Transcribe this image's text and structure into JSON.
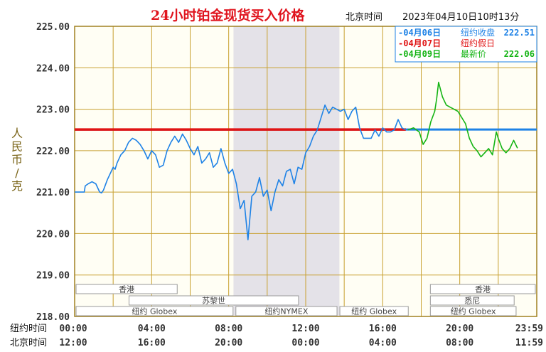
{
  "chart_data": {
    "type": "line",
    "title": "24小时铂金现货买入价格",
    "subtitle_label": "北京时间",
    "subtitle_datetime": "2023年04月10日10时13分",
    "ylabel_chars": [
      "人",
      "民",
      "币",
      "/",
      "克"
    ],
    "ylim": [
      218,
      225
    ],
    "y_ticks": [
      "225.00",
      "224.00",
      "223.00",
      "222.00",
      "221.00",
      "220.00",
      "219.00",
      "218.00"
    ],
    "x_row1_label": "纽约时间",
    "x_row1_ticks": [
      "00:00",
      "04:00",
      "08:00",
      "12:00",
      "16:00",
      "20:00",
      "23:59"
    ],
    "x_row2_label": "北京时间",
    "x_row2_ticks": [
      "12:00",
      "16:00",
      "20:00",
      "00:00",
      "04:00",
      "08:00",
      "11:59"
    ],
    "x_tick_hours": [
      0,
      4,
      8,
      12,
      16,
      20,
      24
    ],
    "grid": true,
    "legend": [
      {
        "date": "-04月06日",
        "label": "纽约收盘",
        "value": "222.51",
        "color": "#1e82e6"
      },
      {
        "date": "-04月07日",
        "label": "纽约假日",
        "value": "",
        "color": "#e01414"
      },
      {
        "date": "-04月09日",
        "label": "最新价",
        "value": "222.06",
        "color": "#14b414"
      }
    ],
    "reference_line": {
      "value": 222.51,
      "color": "#1e82e6"
    },
    "holiday_line": {
      "value": 222.51,
      "color": "#e01414",
      "x_range": [
        0,
        17.2
      ]
    },
    "highlight_range_hours": [
      8.25,
      13.75
    ],
    "sessions": [
      {
        "label": "香港",
        "hours": [
          0,
          5.4
        ],
        "row": 0
      },
      {
        "label": "苏黎世",
        "hours": [
          2.75,
          11.7
        ],
        "row": 1
      },
      {
        "label": "纽约 Globex",
        "hours": [
          0,
          8.3
        ],
        "row": 2
      },
      {
        "label": "纽约NYMEX",
        "hours": [
          8.3,
          13.7
        ],
        "row": 2
      },
      {
        "label": "纽约 Globex",
        "hours": [
          13.7,
          17.4
        ],
        "row": 2
      },
      {
        "label": "香港",
        "hours": [
          18.4,
          24
        ],
        "row": 0
      },
      {
        "label": "悉尼",
        "hours": [
          18.4,
          22.9
        ],
        "row": 1
      },
      {
        "label": "纽约 Globex",
        "hours": [
          18.4,
          23
        ],
        "row": 2
      }
    ],
    "series": [
      {
        "color": "#1e82e6",
        "x": [
          0,
          0.3,
          0.5,
          0.55,
          0.7,
          0.9,
          1.1,
          1.3,
          1.4,
          1.5,
          1.7,
          1.9,
          2.0,
          2.1,
          2.2,
          2.4,
          2.6,
          2.8,
          3.0,
          3.2,
          3.4,
          3.6,
          3.8,
          4.0,
          4.2,
          4.4,
          4.6,
          4.8,
          5.0,
          5.2,
          5.4,
          5.6,
          5.8,
          6.0,
          6.2,
          6.4,
          6.6,
          6.8,
          7.0,
          7.2,
          7.4,
          7.6,
          7.8,
          8.0,
          8.2,
          8.4,
          8.6,
          8.8,
          9.0,
          9.2,
          9.4,
          9.6,
          9.8,
          10.0,
          10.2,
          10.4,
          10.6,
          10.8,
          11.0,
          11.2,
          11.4,
          11.6,
          11.8,
          12.0,
          12.2,
          12.4,
          12.6,
          12.8,
          13.0,
          13.2,
          13.4,
          13.6,
          13.8,
          14.0,
          14.2,
          14.4,
          14.6,
          14.8,
          15.0,
          15.2,
          15.4,
          15.6,
          15.8,
          16.0,
          16.2,
          16.4,
          16.6,
          16.8,
          17.0,
          17.2
        ],
        "y": [
          221.0,
          221.0,
          221.0,
          221.15,
          221.2,
          221.25,
          221.2,
          221.0,
          220.98,
          221.05,
          221.3,
          221.5,
          221.6,
          221.55,
          221.7,
          221.9,
          222.0,
          222.2,
          222.3,
          222.25,
          222.15,
          222.0,
          221.8,
          222.0,
          221.9,
          221.6,
          221.65,
          222.0,
          222.2,
          222.35,
          222.2,
          222.4,
          222.25,
          222.05,
          221.9,
          222.1,
          221.7,
          221.8,
          221.95,
          221.6,
          221.7,
          222.05,
          221.7,
          221.45,
          221.55,
          221.2,
          220.6,
          220.8,
          219.85,
          220.9,
          221.0,
          221.35,
          220.9,
          221.05,
          220.55,
          221.0,
          221.3,
          221.15,
          221.5,
          221.55,
          221.2,
          221.6,
          221.55,
          221.95,
          222.1,
          222.35,
          222.5,
          222.8,
          223.1,
          222.9,
          223.05,
          223.0,
          222.95,
          223.0,
          222.75,
          222.95,
          223.05,
          222.55,
          222.3,
          222.3,
          222.3,
          222.5,
          222.35,
          222.55,
          222.45,
          222.45,
          222.5,
          222.75,
          222.55,
          222.5
        ]
      },
      {
        "color": "#14b414",
        "x": [
          17.3,
          17.6,
          17.9,
          18.1,
          18.3,
          18.5,
          18.7,
          18.8,
          18.9,
          19.1,
          19.3,
          19.5,
          19.7,
          19.9,
          20.1,
          20.3,
          20.5,
          20.7,
          20.9,
          21.1,
          21.3,
          21.5,
          21.7,
          21.9,
          22.0,
          22.2,
          22.4,
          22.6,
          22.8,
          23.0
        ],
        "y": [
          222.5,
          222.55,
          222.45,
          222.15,
          222.3,
          222.7,
          222.95,
          223.25,
          223.65,
          223.3,
          223.1,
          223.05,
          223.0,
          222.95,
          222.8,
          222.65,
          222.3,
          222.1,
          222.0,
          221.85,
          221.95,
          222.05,
          221.9,
          222.45,
          222.3,
          222.05,
          221.95,
          222.05,
          222.25,
          222.06
        ]
      }
    ]
  }
}
